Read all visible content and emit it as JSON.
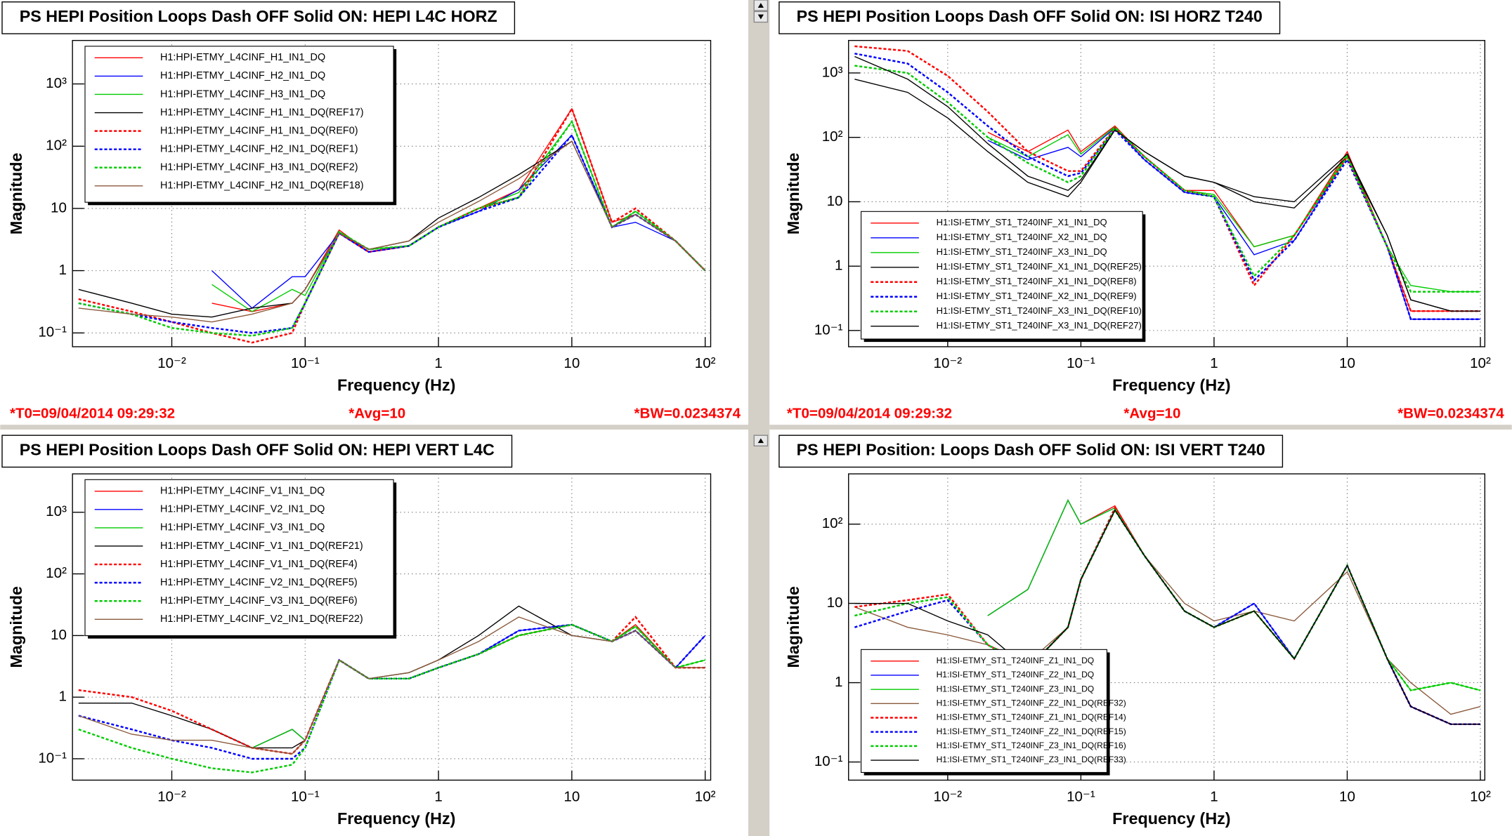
{
  "chart_data": [
    {
      "type": "line",
      "title": "PS HEPI Position Loops Dash OFF Solid ON: HEPI L4C HORZ",
      "x_label": "Frequency (Hz)",
      "y_label": "Magnitude",
      "log_x": true,
      "log_y": true,
      "grid": true,
      "legend": "top-left",
      "annotations": [
        "*T0=09/04/2014 09:29:32",
        "*Avg=10",
        "*BW=0.0234374"
      ],
      "xlim": [
        0.0018,
        110
      ],
      "ylim": [
        0.06,
        5000
      ],
      "xticks": [
        {
          "value": 0.01,
          "label": "10⁻²"
        },
        {
          "value": 0.1,
          "label": "10⁻¹"
        },
        1,
        10,
        {
          "value": 100,
          "label": "10²"
        }
      ],
      "yticks": [
        {
          "value": 0.1,
          "label": "10⁻¹"
        },
        1,
        10,
        {
          "value": 100,
          "label": "10²"
        },
        {
          "value": 1000,
          "label": "10³"
        }
      ],
      "x": [
        0.002,
        0.005,
        0.01,
        0.02,
        0.04,
        0.08,
        0.1,
        0.18,
        0.3,
        0.6,
        1,
        2,
        4,
        10,
        20,
        30,
        60,
        100
      ],
      "series": [
        {
          "name": "H1:HPI-ETMY_L4CINF_H1_IN1_DQ",
          "color": "#ff0000",
          "dashed": false,
          "values": [
            null,
            null,
            null,
            0.3,
            0.22,
            0.3,
            0.5,
            4.5,
            2,
            2.5,
            5,
            10,
            20,
            400,
            6,
            8,
            3,
            1
          ]
        },
        {
          "name": "H1:HPI-ETMY_L4CINF_H2_IN1_DQ",
          "color": "#0000ff",
          "dashed": false,
          "values": [
            null,
            null,
            null,
            1,
            0.25,
            0.8,
            0.8,
            4,
            2,
            2.5,
            5,
            9,
            20,
            150,
            5,
            6,
            3,
            1
          ]
        },
        {
          "name": "H1:HPI-ETMY_L4CINF_H3_IN1_DQ",
          "color": "#00cc00",
          "dashed": false,
          "values": [
            null,
            null,
            null,
            0.6,
            0.22,
            0.5,
            0.4,
            4.2,
            2.2,
            2.5,
            5,
            10,
            18,
            250,
            5,
            9,
            3,
            1
          ]
        },
        {
          "name": "H1:HPI-ETMY_L4CINF_H1_IN1_DQ(REF17)",
          "color": "#000000",
          "dashed": false,
          "values": [
            0.5,
            0.3,
            0.2,
            0.18,
            0.25,
            0.3,
            0.5,
            4,
            2.2,
            3,
            7,
            15,
            35,
            120,
            5,
            8,
            3,
            1
          ]
        },
        {
          "name": "H1:HPI-ETMY_L4CINF_H1_IN1_DQ(REF0)",
          "color": "#ff0000",
          "dashed": true,
          "values": [
            0.35,
            0.22,
            0.15,
            0.1,
            0.07,
            0.1,
            0.3,
            4,
            2,
            2.5,
            5,
            10,
            15,
            400,
            6,
            10,
            3,
            1
          ]
        },
        {
          "name": "H1:HPI-ETMY_L4CINF_H2_IN1_DQ(REF1)",
          "color": "#0000ff",
          "dashed": true,
          "values": [
            0.3,
            0.2,
            0.15,
            0.12,
            0.1,
            0.12,
            0.3,
            4,
            2,
            2.5,
            5,
            9,
            15,
            150,
            5,
            8,
            3,
            1
          ]
        },
        {
          "name": "H1:HPI-ETMY_L4CINF_H3_IN1_DQ(REF2)",
          "color": "#00cc00",
          "dashed": true,
          "values": [
            0.3,
            0.2,
            0.12,
            0.1,
            0.09,
            0.12,
            0.3,
            4.2,
            2.2,
            2.5,
            5,
            10,
            15,
            250,
            5,
            9,
            3,
            1
          ]
        },
        {
          "name": "H1:HPI-ETMY_L4CINF_H2_IN1_DQ(REF18)",
          "color": "#8b5a3c",
          "dashed": false,
          "values": [
            0.25,
            0.2,
            0.18,
            0.15,
            0.2,
            0.3,
            0.5,
            4,
            2.2,
            3,
            6,
            13,
            30,
            120,
            5,
            8,
            3,
            1
          ]
        }
      ]
    },
    {
      "type": "line",
      "title": "PS HEPI Position Loops Dash OFF Solid ON: ISI HORZ T240",
      "x_label": "Frequency (Hz)",
      "y_label": "Magnitude",
      "log_x": true,
      "log_y": true,
      "grid": true,
      "legend": "bottom-left",
      "annotations": [
        "*T0=09/04/2014 09:29:32",
        "*Avg=10",
        "*BW=0.0234374"
      ],
      "xlim": [
        0.0018,
        108
      ],
      "ylim": [
        0.056,
        3200
      ],
      "xticks": [
        {
          "value": 0.01,
          "label": "10⁻²"
        },
        {
          "value": 0.1,
          "label": "10⁻¹"
        },
        1,
        10,
        {
          "value": 100,
          "label": "10²"
        }
      ],
      "yticks": [
        {
          "value": 0.1,
          "label": "10⁻¹"
        },
        1,
        10,
        {
          "value": 100,
          "label": "10²"
        },
        {
          "value": 1000,
          "label": "10³"
        }
      ],
      "x": [
        0.002,
        0.005,
        0.01,
        0.02,
        0.04,
        0.08,
        0.1,
        0.18,
        0.3,
        0.6,
        1,
        2,
        4,
        10,
        20,
        30,
        60,
        100
      ],
      "series": [
        {
          "name": "H1:ISI-ETMY_ST1_T240INF_X1_IN1_DQ",
          "color": "#ff0000",
          "dashed": false,
          "values": [
            null,
            null,
            null,
            120,
            60,
            130,
            60,
            150,
            50,
            15,
            15,
            2,
            3,
            60,
            2,
            0.2,
            0.2,
            0.2
          ]
        },
        {
          "name": "H1:ISI-ETMY_ST1_T240INF_X2_IN1_DQ",
          "color": "#0000ff",
          "dashed": false,
          "values": [
            null,
            null,
            null,
            90,
            45,
            70,
            50,
            140,
            45,
            14,
            12,
            1.5,
            2.5,
            50,
            2,
            0.15,
            0.15,
            0.15
          ]
        },
        {
          "name": "H1:ISI-ETMY_ST1_T240INF_X3_IN1_DQ",
          "color": "#00cc00",
          "dashed": false,
          "values": [
            null,
            null,
            null,
            100,
            50,
            110,
            55,
            145,
            50,
            15,
            13,
            2,
            3,
            55,
            2,
            0.5,
            0.4,
            0.4
          ]
        },
        {
          "name": "H1:ISI-ETMY_ST1_T240INF_X1_IN1_DQ(REF25)",
          "color": "#000000",
          "dashed": false,
          "values": [
            800,
            500,
            200,
            60,
            20,
            12,
            20,
            130,
            60,
            25,
            20,
            10,
            8,
            50,
            3,
            0.3,
            0.2,
            0.2
          ]
        },
        {
          "name": "H1:ISI-ETMY_ST1_T240INF_X1_IN1_DQ(REF8)",
          "color": "#ff0000",
          "dashed": true,
          "values": [
            2600,
            2200,
            900,
            250,
            60,
            30,
            30,
            140,
            50,
            15,
            12,
            0.5,
            3,
            50,
            2,
            0.2,
            0.2,
            0.2
          ]
        },
        {
          "name": "H1:ISI-ETMY_ST1_T240INF_X2_IN1_DQ(REF9)",
          "color": "#0000ff",
          "dashed": true,
          "values": [
            2000,
            1400,
            500,
            150,
            50,
            25,
            28,
            130,
            45,
            14,
            12,
            0.6,
            2.5,
            45,
            2,
            0.15,
            0.15,
            0.15
          ]
        },
        {
          "name": "H1:ISI-ETMY_ST1_T240INF_X3_IN1_DQ(REF10)",
          "color": "#00cc00",
          "dashed": true,
          "values": [
            1300,
            1000,
            350,
            100,
            40,
            20,
            25,
            140,
            50,
            15,
            12,
            0.7,
            3,
            50,
            2,
            0.4,
            0.4,
            0.4
          ]
        },
        {
          "name": "H1:ISI-ETMY_ST1_T240INF_X3_IN1_DQ(REF27)",
          "color": "#000000",
          "dashed": false,
          "values": [
            1800,
            800,
            300,
            80,
            25,
            15,
            22,
            130,
            60,
            25,
            20,
            12,
            10,
            55,
            3,
            0.3,
            0.2,
            0.2
          ]
        }
      ]
    },
    {
      "type": "line",
      "title": "PS HEPI Position Loops Dash OFF Solid ON: HEPI VERT L4C",
      "x_label": "Frequency (Hz)",
      "y_label": "Magnitude",
      "log_x": true,
      "log_y": true,
      "grid": true,
      "legend": "top-left",
      "xlim": [
        0.0018,
        110
      ],
      "ylim": [
        0.045,
        4200
      ],
      "xticks": [
        {
          "value": 0.01,
          "label": "10⁻²"
        },
        {
          "value": 0.1,
          "label": "10⁻¹"
        },
        1,
        10,
        {
          "value": 100,
          "label": "10²"
        }
      ],
      "yticks": [
        {
          "value": 0.1,
          "label": "10⁻¹"
        },
        1,
        10,
        {
          "value": 100,
          "label": "10²"
        },
        {
          "value": 1000,
          "label": "10³"
        }
      ],
      "x": [
        0.002,
        0.005,
        0.01,
        0.02,
        0.04,
        0.08,
        0.1,
        0.18,
        0.3,
        0.6,
        1,
        2,
        4,
        10,
        20,
        30,
        60,
        100
      ],
      "series": [
        {
          "name": "H1:HPI-ETMY_L4CINF_V1_IN1_DQ",
          "color": "#ff0000",
          "dashed": false,
          "values": [
            null,
            null,
            null,
            null,
            0.15,
            0.3,
            0.2,
            4,
            2,
            2,
            3,
            5,
            10,
            15,
            8,
            15,
            3,
            3
          ]
        },
        {
          "name": "H1:HPI-ETMY_L4CINF_V2_IN1_DQ",
          "color": "#0000ff",
          "dashed": false,
          "values": [
            null,
            null,
            null,
            null,
            0.15,
            0.3,
            0.2,
            4,
            2,
            2,
            3,
            5,
            12,
            15,
            8,
            12,
            3,
            10
          ]
        },
        {
          "name": "H1:HPI-ETMY_L4CINF_V3_IN1_DQ",
          "color": "#00cc00",
          "dashed": false,
          "values": [
            null,
            null,
            null,
            null,
            0.15,
            0.3,
            0.2,
            4,
            2,
            2,
            3,
            5,
            10,
            15,
            8,
            14,
            3,
            4
          ]
        },
        {
          "name": "H1:HPI-ETMY_L4CINF_V1_IN1_DQ(REF21)",
          "color": "#000000",
          "dashed": false,
          "values": [
            0.8,
            0.8,
            0.5,
            0.3,
            0.15,
            0.15,
            0.2,
            4,
            2,
            2.5,
            4,
            10,
            30,
            10,
            8,
            12,
            3,
            3
          ]
        },
        {
          "name": "H1:HPI-ETMY_L4CINF_V1_IN1_DQ(REF4)",
          "color": "#ff0000",
          "dashed": true,
          "values": [
            1.3,
            1,
            0.6,
            0.3,
            0.15,
            0.12,
            0.2,
            4,
            2,
            2,
            3,
            5,
            10,
            15,
            8,
            20,
            3,
            3
          ]
        },
        {
          "name": "H1:HPI-ETMY_L4CINF_V2_IN1_DQ(REF5)",
          "color": "#0000ff",
          "dashed": true,
          "values": [
            0.5,
            0.3,
            0.2,
            0.15,
            0.1,
            0.1,
            0.15,
            4,
            2,
            2,
            3,
            5,
            12,
            15,
            8,
            12,
            3,
            10
          ]
        },
        {
          "name": "H1:HPI-ETMY_L4CINF_V3_IN1_DQ(REF6)",
          "color": "#00cc00",
          "dashed": true,
          "values": [
            0.3,
            0.15,
            0.1,
            0.07,
            0.06,
            0.08,
            0.15,
            4,
            2,
            2,
            3,
            5,
            10,
            15,
            8,
            14,
            3,
            4
          ]
        },
        {
          "name": "H1:HPI-ETMY_L4CINF_V2_IN1_DQ(REF22)",
          "color": "#8b5a3c",
          "dashed": false,
          "values": [
            0.5,
            0.25,
            0.2,
            0.2,
            0.15,
            0.12,
            0.2,
            4,
            2,
            2.5,
            4,
            8,
            20,
            10,
            8,
            12,
            3,
            3
          ]
        }
      ]
    },
    {
      "type": "line",
      "title": "PS HEPI Position: Loops Dash OFF Solid ON: ISI VERT T240",
      "x_label": "Frequency (Hz)",
      "y_label": "Magnitude",
      "log_x": true,
      "log_y": true,
      "grid": true,
      "legend": "bottom-left",
      "xlim": [
        0.0018,
        108
      ],
      "ylim": [
        0.059,
        430
      ],
      "xticks": [
        {
          "value": 0.01,
          "label": "10⁻²"
        },
        {
          "value": 0.1,
          "label": "10⁻¹"
        },
        1,
        10,
        {
          "value": 100,
          "label": "10²"
        }
      ],
      "yticks": [
        {
          "value": 0.1,
          "label": "10⁻¹"
        },
        1,
        10,
        {
          "value": 100,
          "label": "10²"
        }
      ],
      "x": [
        0.002,
        0.005,
        0.01,
        0.02,
        0.04,
        0.08,
        0.1,
        0.18,
        0.3,
        0.6,
        1,
        2,
        4,
        10,
        20,
        30,
        60,
        100
      ],
      "series": [
        {
          "name": "H1:ISI-ETMY_ST1_T240INF_Z1_IN1_DQ",
          "color": "#ff0000",
          "dashed": false,
          "values": [
            null,
            null,
            null,
            7,
            15,
            200,
            100,
            170,
            40,
            8,
            5,
            8,
            2,
            30,
            2,
            0.5,
            0.3,
            0.3
          ]
        },
        {
          "name": "H1:ISI-ETMY_ST1_T240INF_Z2_IN1_DQ",
          "color": "#0000ff",
          "dashed": false,
          "values": [
            null,
            null,
            null,
            7,
            15,
            200,
            100,
            160,
            40,
            8,
            5,
            10,
            2,
            30,
            2,
            0.5,
            0.3,
            0.3
          ]
        },
        {
          "name": "H1:ISI-ETMY_ST1_T240INF_Z3_IN1_DQ",
          "color": "#00cc00",
          "dashed": false,
          "values": [
            null,
            null,
            null,
            7,
            15,
            200,
            100,
            160,
            40,
            8,
            5,
            8,
            2,
            30,
            2,
            0.8,
            1,
            0.8
          ]
        },
        {
          "name": "H1:ISI-ETMY_ST1_T240INF_Z2_IN1_DQ(REF32)",
          "color": "#8b5a3c",
          "dashed": false,
          "values": [
            9,
            5,
            4,
            3,
            1.8,
            5,
            20,
            150,
            40,
            10,
            6,
            8,
            6,
            25,
            2,
            1,
            0.4,
            0.5
          ]
        },
        {
          "name": "H1:ISI-ETMY_ST1_T240INF_Z1_IN1_DQ(REF14)",
          "color": "#ff0000",
          "dashed": true,
          "values": [
            9,
            11,
            13,
            3,
            1.5,
            5,
            20,
            160,
            40,
            8,
            5,
            8,
            2,
            30,
            2,
            0.5,
            0.3,
            0.3
          ]
        },
        {
          "name": "H1:ISI-ETMY_ST1_T240INF_Z2_IN1_DQ(REF15)",
          "color": "#0000ff",
          "dashed": true,
          "values": [
            5,
            8,
            11,
            3,
            1.5,
            5,
            20,
            150,
            40,
            8,
            5,
            10,
            2,
            30,
            2,
            0.5,
            0.3,
            0.3
          ]
        },
        {
          "name": "H1:ISI-ETMY_ST1_T240INF_Z3_IN1_DQ(REF16)",
          "color": "#00cc00",
          "dashed": true,
          "values": [
            7,
            10,
            12,
            3,
            1.5,
            5,
            20,
            150,
            40,
            8,
            5,
            8,
            2,
            30,
            2,
            0.8,
            1,
            0.8
          ]
        },
        {
          "name": "H1:ISI-ETMY_ST1_T240INF_Z3_IN1_DQ(REF33)",
          "color": "#000000",
          "dashed": false,
          "values": [
            10,
            10,
            6,
            4,
            1.5,
            5,
            20,
            150,
            40,
            8,
            5,
            8,
            2,
            30,
            2,
            0.5,
            0.3,
            0.3
          ]
        }
      ]
    }
  ]
}
